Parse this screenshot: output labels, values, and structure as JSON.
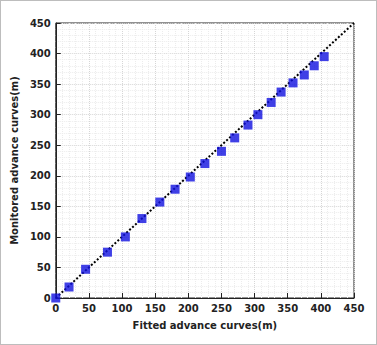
{
  "chart_data": {
    "type": "scatter",
    "x_label": "Fitted advance curves(m)",
    "y_label": "Monitored advance curves(m)",
    "x": [
      0,
      20,
      45,
      78,
      105,
      130,
      157,
      180,
      203,
      225,
      250,
      270,
      290,
      305,
      325,
      340,
      358,
      375,
      390,
      405
    ],
    "values": [
      0,
      18,
      47,
      75,
      100,
      130,
      157,
      178,
      198,
      220,
      240,
      262,
      283,
      300,
      320,
      337,
      352,
      365,
      380,
      395
    ],
    "color": "#1010e0",
    "marker": "square",
    "reference_line": {
      "x": [
        0,
        450
      ],
      "y": [
        0,
        450
      ],
      "line_style": "dotted",
      "color": "#000000"
    },
    "xlim": [
      0,
      450
    ],
    "xticks": [
      0,
      50,
      100,
      150,
      200,
      250,
      300,
      350,
      400,
      450
    ],
    "ylim": [
      0,
      450
    ],
    "yticks": [
      0,
      50,
      100,
      150,
      200,
      250,
      300,
      350,
      400,
      450
    ],
    "grid": true
  }
}
